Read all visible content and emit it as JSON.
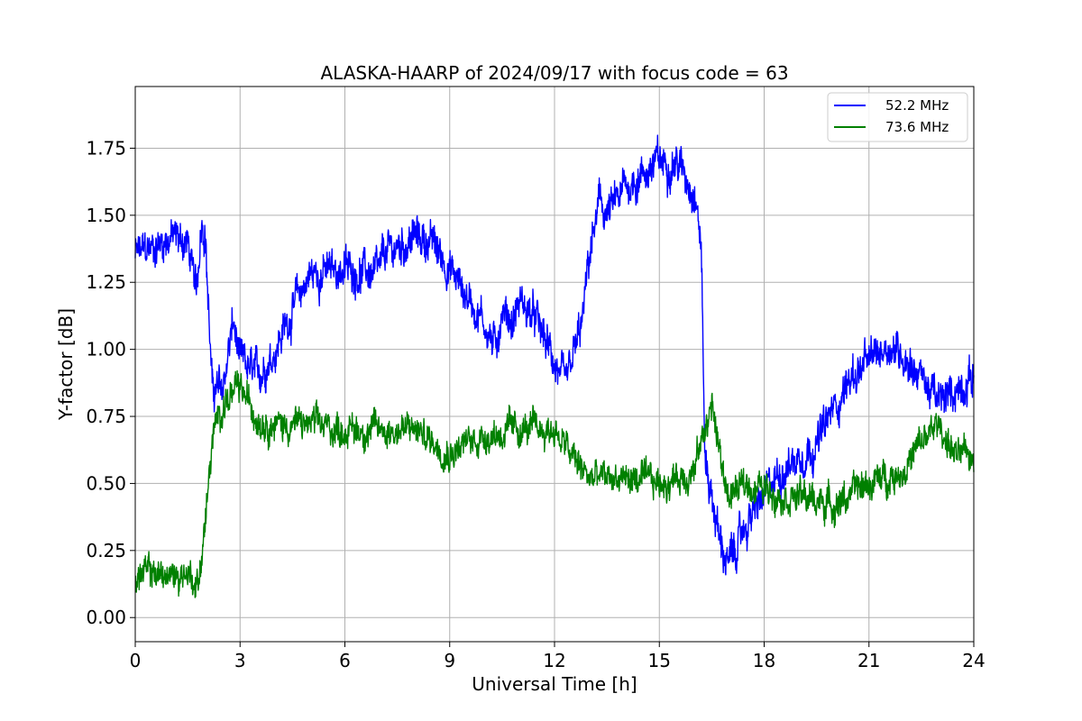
{
  "chart_data": {
    "type": "line",
    "title": "ALASKA-HAARP of 2024/09/17 with focus code = 63",
    "xlabel": "Universal Time [h]",
    "ylabel": "Y-factor [dB]",
    "xlim": [
      0,
      24
    ],
    "ylim": [
      -0.09,
      1.98
    ],
    "xticks": [
      0,
      3,
      6,
      9,
      12,
      15,
      18,
      21,
      24
    ],
    "xtick_labels": [
      "0",
      "3",
      "6",
      "9",
      "12",
      "15",
      "18",
      "21",
      "24"
    ],
    "yticks": [
      0.0,
      0.25,
      0.5,
      0.75,
      1.0,
      1.25,
      1.5,
      1.75
    ],
    "ytick_labels": [
      "0.00",
      "0.25",
      "0.50",
      "0.75",
      "1.00",
      "1.25",
      "1.50",
      "1.75"
    ],
    "grid": true,
    "legend_position": "top-right",
    "series": [
      {
        "name": "52.2 MHz",
        "color": "#0000ff",
        "noise": 0.06,
        "x": [
          0,
          0.5,
          1.0,
          1.5,
          1.75,
          1.9,
          2.0,
          2.2,
          2.5,
          2.8,
          3.0,
          3.5,
          4.0,
          4.5,
          5.0,
          6.0,
          7.0,
          7.1,
          8.0,
          8.5,
          9.0,
          9.5,
          10.0,
          10.3,
          10.5,
          10.8,
          11.0,
          11.5,
          12.0,
          12.3,
          12.5,
          12.8,
          13.0,
          13.3,
          13.5,
          13.8,
          14.0,
          14.5,
          15.0,
          15.5,
          16.0,
          16.2,
          16.3,
          16.5,
          16.8,
          17.0,
          17.5,
          18.0,
          18.5,
          19.0,
          19.5,
          20.0,
          20.5,
          21.0,
          21.5,
          22.0,
          22.5,
          23.0,
          23.5,
          24.0
        ],
        "y": [
          1.35,
          1.38,
          1.42,
          1.4,
          1.2,
          1.5,
          1.45,
          0.85,
          0.85,
          1.1,
          0.95,
          0.9,
          1.0,
          1.15,
          1.28,
          1.3,
          1.28,
          1.35,
          1.42,
          1.4,
          1.3,
          1.2,
          1.1,
          1.0,
          1.15,
          1.1,
          1.18,
          1.1,
          0.95,
          0.85,
          0.95,
          1.1,
          1.35,
          1.55,
          1.5,
          1.55,
          1.6,
          1.65,
          1.7,
          1.7,
          1.6,
          1.4,
          0.6,
          0.45,
          0.25,
          0.2,
          0.35,
          0.45,
          0.55,
          0.6,
          0.65,
          0.78,
          0.9,
          0.95,
          1.02,
          0.98,
          0.9,
          0.8,
          0.85,
          0.9
        ]
      },
      {
        "name": "73.6 MHz",
        "color": "#008000",
        "noise": 0.05,
        "x": [
          0,
          0.5,
          1.0,
          1.5,
          1.8,
          2.0,
          2.2,
          2.5,
          3.0,
          3.5,
          4.0,
          5.0,
          6.0,
          7.0,
          8.0,
          9.0,
          10.0,
          11.0,
          12.0,
          12.5,
          13.0,
          14.0,
          15.0,
          15.5,
          16.0,
          16.5,
          16.8,
          17.0,
          17.5,
          18.0,
          19.0,
          20.0,
          21.0,
          22.0,
          22.5,
          23.0,
          23.5,
          24.0
        ],
        "y": [
          0.15,
          0.17,
          0.15,
          0.17,
          0.12,
          0.35,
          0.65,
          0.8,
          0.85,
          0.75,
          0.72,
          0.72,
          0.7,
          0.7,
          0.7,
          0.62,
          0.68,
          0.7,
          0.7,
          0.6,
          0.52,
          0.52,
          0.5,
          0.52,
          0.55,
          0.8,
          0.55,
          0.45,
          0.5,
          0.48,
          0.45,
          0.42,
          0.5,
          0.55,
          0.65,
          0.72,
          0.6,
          0.6
        ]
      }
    ]
  }
}
